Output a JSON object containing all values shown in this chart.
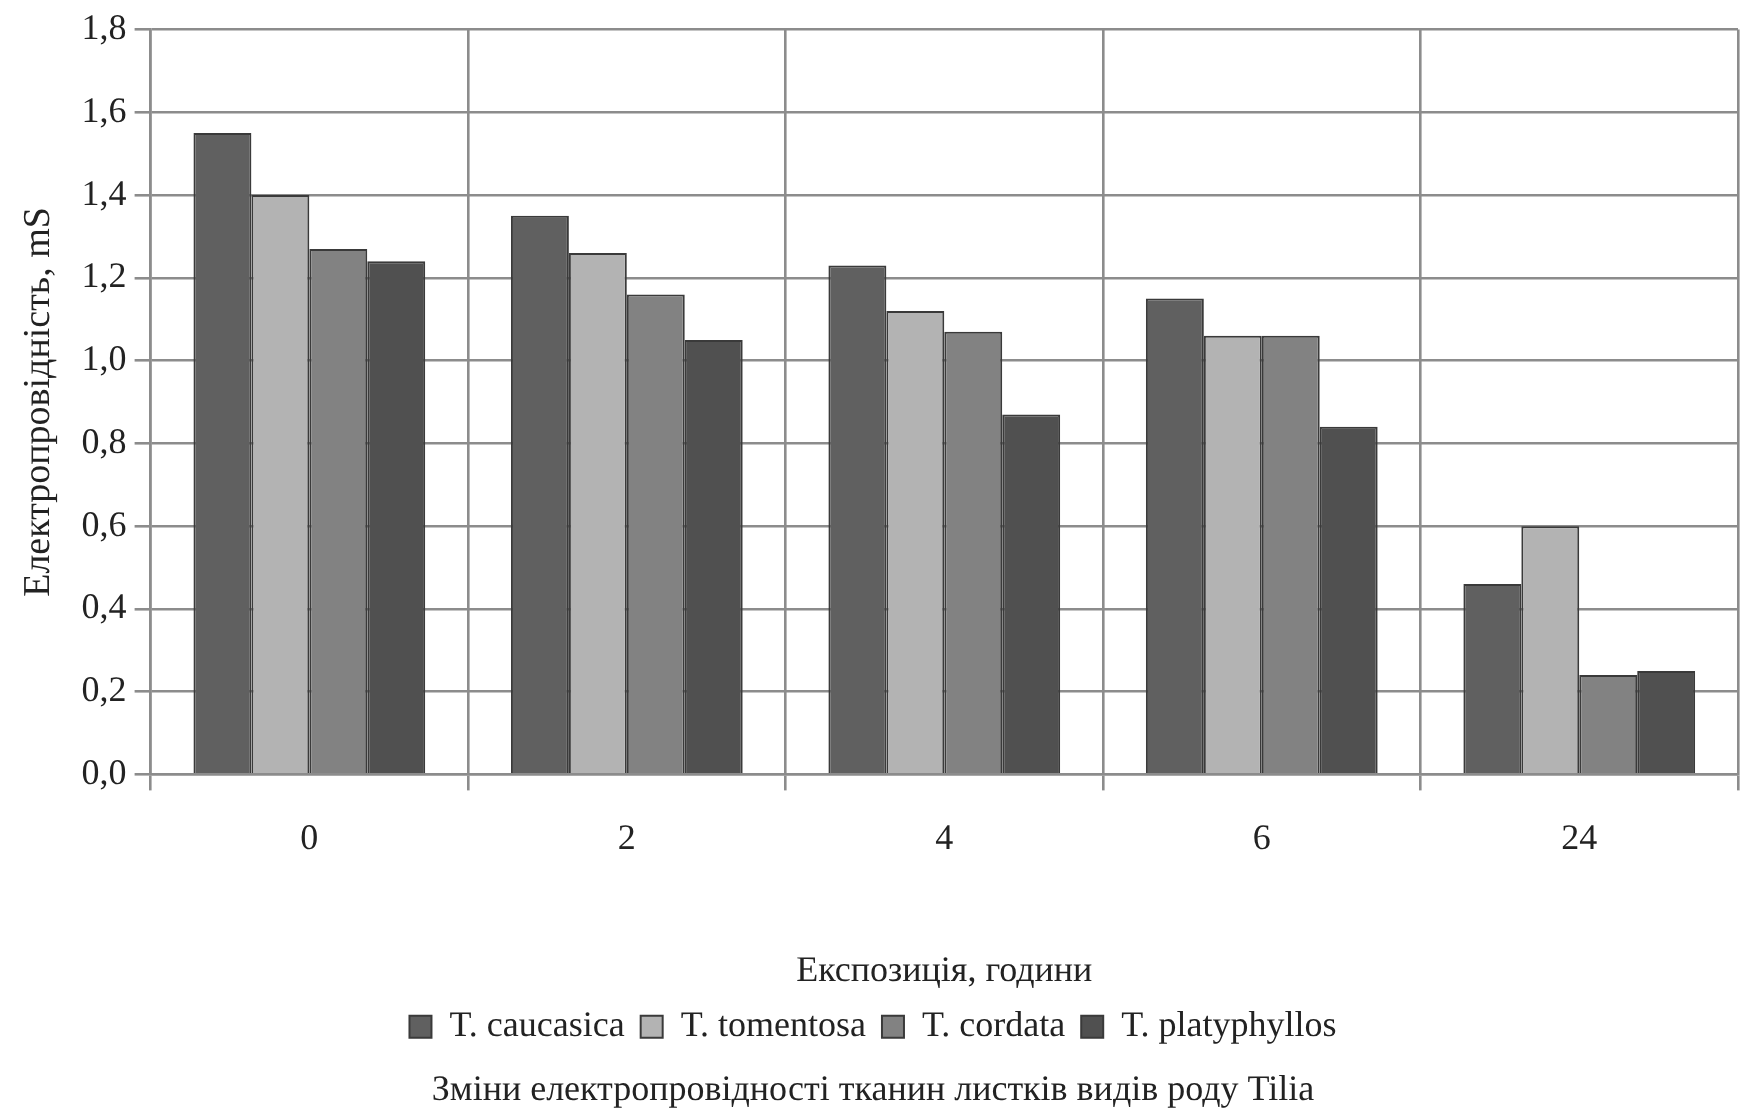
{
  "chart_data": {
    "type": "bar",
    "title": "Зміни електропровідності тканин листків видів роду Tilia",
    "xlabel": "Експозиція, години",
    "ylabel": "Електропровідність, mS",
    "categories": [
      "0",
      "2",
      "4",
      "6",
      "24"
    ],
    "series": [
      {
        "name": "T. caucasica",
        "color": "#606060",
        "values": [
          1.55,
          1.35,
          1.23,
          1.15,
          0.46
        ]
      },
      {
        "name": "T. tomentosa",
        "color": "#b3b3b3",
        "values": [
          1.4,
          1.26,
          1.12,
          1.06,
          0.6
        ]
      },
      {
        "name": "T. cordata",
        "color": "#828282",
        "values": [
          1.27,
          1.16,
          1.07,
          1.06,
          0.24
        ]
      },
      {
        "name": "T. platyphyllos",
        "color": "#505050",
        "values": [
          1.24,
          1.05,
          0.87,
          0.84,
          0.25
        ]
      }
    ],
    "ylim": [
      0,
      1.8
    ],
    "yticks": [
      {
        "value": 0,
        "label": "0,0"
      },
      {
        "value": 0.2,
        "label": "0,2"
      },
      {
        "value": 0.4,
        "label": "0,4"
      },
      {
        "value": 0.6,
        "label": "0,6"
      },
      {
        "value": 0.8,
        "label": "0,8"
      },
      {
        "value": 1,
        "label": "1,0"
      },
      {
        "value": 1.2,
        "label": "1,2"
      },
      {
        "value": 1.4,
        "label": "1,4"
      },
      {
        "value": 1.6,
        "label": "1,6"
      },
      {
        "value": 1.8,
        "label": "1,8"
      }
    ],
    "grid": true,
    "legend": "bottom"
  }
}
